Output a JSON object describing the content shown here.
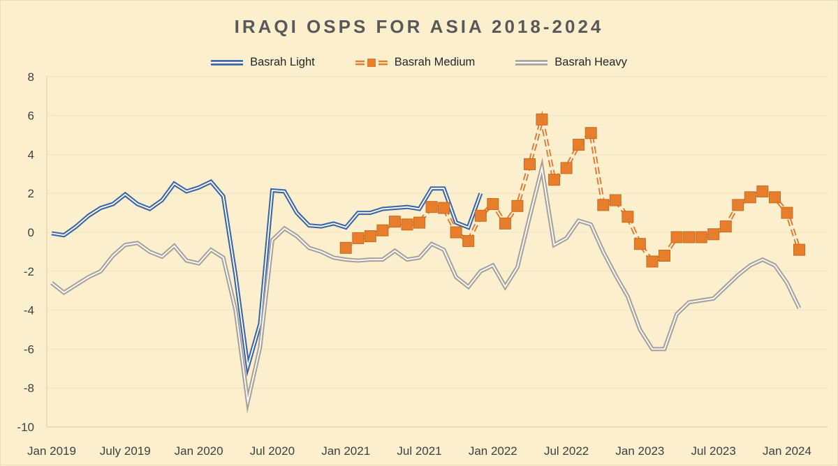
{
  "title": "IRAQI OSPS FOR ASIA 2018-2024",
  "legend": {
    "items": [
      {
        "label": "Basrah Light",
        "color": "#3C66A8",
        "style": "double-line"
      },
      {
        "label": "Basrah Medium",
        "color": "#E67E2C",
        "style": "dashed-line-with-square-marker"
      },
      {
        "label": "Basrah Heavy",
        "color": "#A7A29A",
        "style": "double-line"
      }
    ]
  },
  "colors": {
    "background": "#FBEFCD",
    "gridline": "#F0E3BE",
    "axis_line": "#DCCBA2",
    "title_text": "#595959",
    "tick_text": "#3F3F3F",
    "basrah_light": "#3C66A8",
    "basrah_medium": "#E67E2C",
    "basrah_medium_marker_border": "#C96A1E",
    "basrah_heavy": "#A7A29A",
    "line_inner_stripe": "#FFFFFF"
  },
  "chart_data": {
    "type": "line",
    "title": "IRAQI OSPS FOR ASIA 2018-2024",
    "x_unit": "month",
    "x_start_label": "Jan 2019",
    "x_end_label": "Feb 2024",
    "ylim": [
      -10,
      8
    ],
    "y_ticks": [
      8,
      6,
      4,
      2,
      0,
      -2,
      -4,
      -6,
      -8,
      -10
    ],
    "grid": "horizontal-only",
    "legend_position": "top-center",
    "x_ticks": [
      {
        "label": "Jan 2019",
        "month_index": 0
      },
      {
        "label": "July 2019",
        "month_index": 6
      },
      {
        "label": "Jan 2020",
        "month_index": 12
      },
      {
        "label": "Jul 2020",
        "month_index": 18
      },
      {
        "label": "Jan 2021",
        "month_index": 24
      },
      {
        "label": "Jul 2021",
        "month_index": 30
      },
      {
        "label": "Jan 2022",
        "month_index": 36
      },
      {
        "label": "Jul 2022",
        "month_index": 42
      },
      {
        "label": "Jan 2023",
        "month_index": 48
      },
      {
        "label": "Jul 2023",
        "month_index": 54
      },
      {
        "label": "Jan 2024",
        "month_index": 60
      }
    ],
    "series": [
      {
        "name": "Basrah Light",
        "color": "#3C66A8",
        "line_style": "double-outline",
        "marker": "none",
        "start_month_index": 0,
        "first_month": "Jan 2019",
        "last_month": "Dec 2021",
        "values": [
          -0.05,
          -0.15,
          0.3,
          0.85,
          1.25,
          1.45,
          1.95,
          1.45,
          1.2,
          1.65,
          2.5,
          2.1,
          2.3,
          2.6,
          1.85,
          -2.2,
          -6.9,
          -4.7,
          2.15,
          2.1,
          1.0,
          0.35,
          0.3,
          0.45,
          0.25,
          1.0,
          1.0,
          1.2,
          1.25,
          1.3,
          1.2,
          2.25,
          2.25,
          0.5,
          0.25,
          2.0
        ]
      },
      {
        "name": "Basrah Medium",
        "color": "#E67E2C",
        "line_style": "dashed-double-outline",
        "marker": "square",
        "start_month_index": 24,
        "first_month": "Jan 2021",
        "last_month": "Feb 2024",
        "values": [
          -0.8,
          -0.3,
          -0.2,
          0.1,
          0.55,
          0.4,
          0.5,
          1.3,
          1.25,
          0.0,
          -0.45,
          0.85,
          1.45,
          0.45,
          1.35,
          3.5,
          5.8,
          2.7,
          3.3,
          4.5,
          5.1,
          1.4,
          1.65,
          0.8,
          -0.6,
          -1.5,
          -1.2,
          -0.25,
          -0.25,
          -0.25,
          -0.1,
          0.3,
          1.4,
          1.8,
          2.1,
          1.8,
          1.0,
          -0.9
        ]
      },
      {
        "name": "Basrah Heavy",
        "color": "#A7A29A",
        "line_style": "double-outline",
        "marker": "none",
        "start_month_index": 0,
        "first_month": "Jan 2019",
        "last_month": "Feb 2024",
        "values": [
          -2.6,
          -3.1,
          -2.7,
          -2.3,
          -2.0,
          -1.2,
          -0.65,
          -0.55,
          -1.0,
          -1.25,
          -0.7,
          -1.45,
          -1.6,
          -0.9,
          -1.3,
          -4.0,
          -8.7,
          -5.9,
          -0.4,
          0.2,
          -0.2,
          -0.8,
          -1.0,
          -1.3,
          -1.4,
          -1.45,
          -1.4,
          -1.4,
          -0.95,
          -1.4,
          -1.3,
          -0.6,
          -0.9,
          -2.3,
          -2.8,
          -2.0,
          -1.7,
          -2.8,
          -1.8,
          0.8,
          3.3,
          -0.65,
          -0.3,
          0.6,
          0.4,
          -1.0,
          -2.2,
          -3.3,
          -5.0,
          -6.0,
          -6.0,
          -4.2,
          -3.6,
          -3.5,
          -3.4,
          -2.8,
          -2.2,
          -1.7,
          -1.4,
          -1.7,
          -2.6,
          -3.9
        ]
      }
    ]
  }
}
